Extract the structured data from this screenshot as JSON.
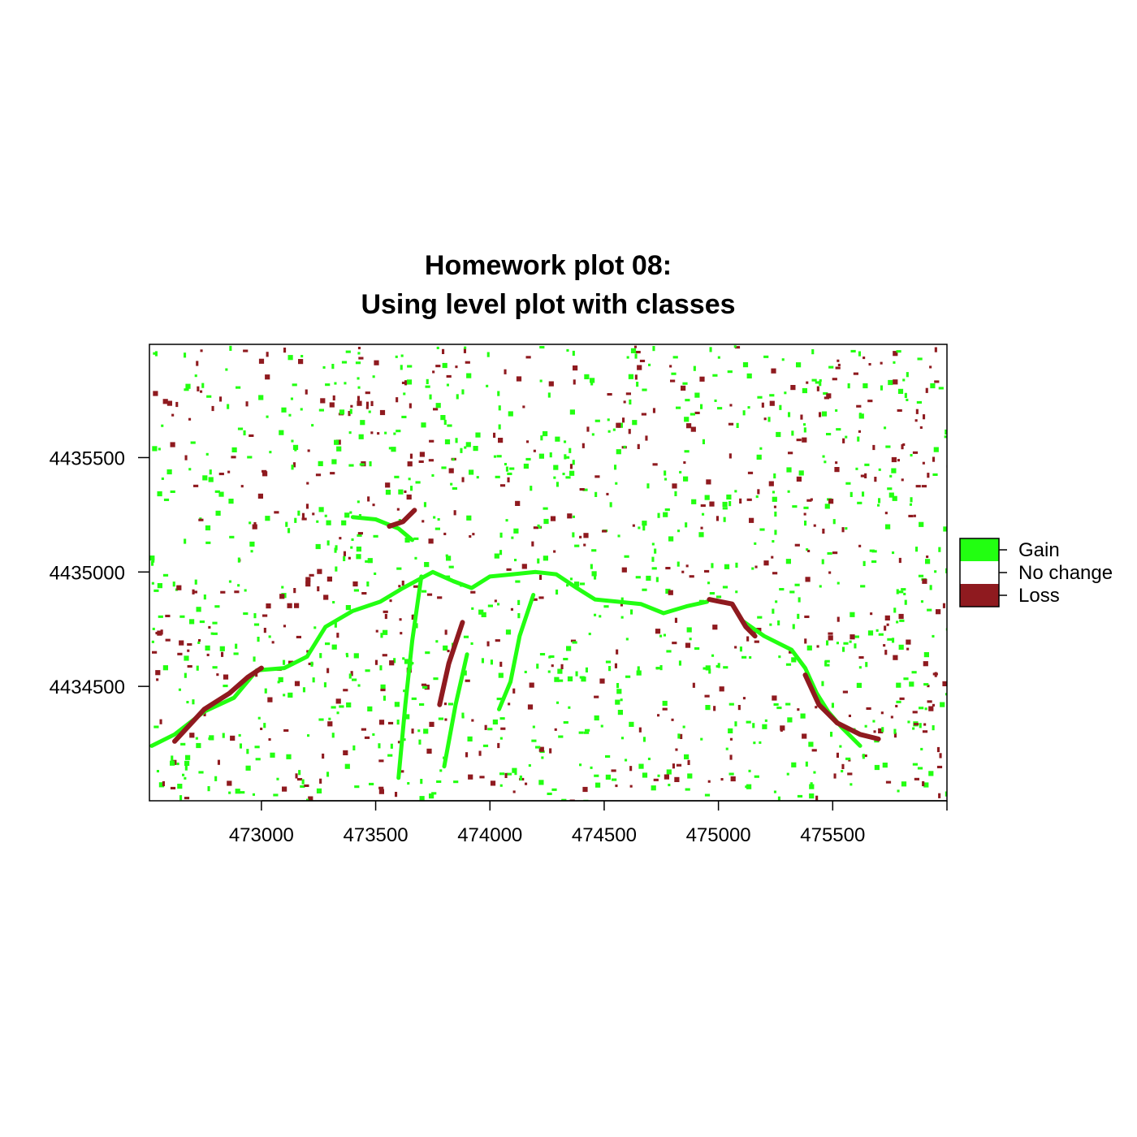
{
  "chart_data": {
    "type": "heatmap",
    "title_lines": [
      "Homework plot 08:",
      "Using level plot with classes"
    ],
    "xlabel": "",
    "ylabel": "",
    "xlim": [
      472510,
      476000
    ],
    "ylim": [
      4434000,
      4435995
    ],
    "x_ticks": [
      473000,
      473500,
      474000,
      474500,
      475000,
      475500
    ],
    "y_ticks": [
      4434500,
      4435000,
      4435500
    ],
    "legend": {
      "placement": "right",
      "classes": [
        {
          "label": "Gain",
          "value": 1,
          "color": "#22ff11"
        },
        {
          "label": "No change",
          "value": 0,
          "color": "#ffffff"
        },
        {
          "label": "Loss",
          "value": -1,
          "color": "#8f1a1f"
        }
      ]
    },
    "features": [
      {
        "class": "Gain",
        "path": [
          [
            472520,
            4434240
          ],
          [
            472620,
            4434290
          ],
          [
            472750,
            4434390
          ],
          [
            472880,
            4434450
          ],
          [
            472980,
            4434570
          ],
          [
            473100,
            4434580
          ],
          [
            473200,
            4434630
          ],
          [
            473280,
            4434760
          ],
          [
            473400,
            4434830
          ],
          [
            473520,
            4434870
          ],
          [
            473620,
            4434930
          ],
          [
            473750,
            4435000
          ],
          [
            473840,
            4434960
          ],
          [
            473920,
            4434930
          ],
          [
            474000,
            4434980
          ],
          [
            474100,
            4434990
          ],
          [
            474200,
            4435000
          ],
          [
            474290,
            4434990
          ],
          [
            474380,
            4434930
          ],
          [
            474460,
            4434880
          ],
          [
            474560,
            4434870
          ],
          [
            474660,
            4434860
          ],
          [
            474760,
            4434820
          ],
          [
            474860,
            4434850
          ],
          [
            474950,
            4434870
          ]
        ]
      },
      {
        "class": "Gain",
        "path": [
          [
            475100,
            4434790
          ],
          [
            475200,
            4434720
          ],
          [
            475320,
            4434660
          ],
          [
            475380,
            4434580
          ],
          [
            475430,
            4434470
          ],
          [
            475480,
            4434390
          ],
          [
            475540,
            4434320
          ],
          [
            475620,
            4434240
          ]
        ]
      },
      {
        "class": "Gain",
        "path": [
          [
            473400,
            4435240
          ],
          [
            473500,
            4435230
          ],
          [
            473600,
            4435190
          ],
          [
            473660,
            4435140
          ]
        ]
      },
      {
        "class": "Gain",
        "path": [
          [
            474190,
            4434900
          ],
          [
            474130,
            4434720
          ],
          [
            474090,
            4434520
          ],
          [
            474040,
            4434400
          ]
        ]
      },
      {
        "class": "Gain",
        "path": [
          [
            473700,
            4434980
          ],
          [
            473660,
            4434700
          ],
          [
            473630,
            4434420
          ],
          [
            473600,
            4434100
          ]
        ]
      },
      {
        "class": "Gain",
        "path": [
          [
            473900,
            4434640
          ],
          [
            473850,
            4434420
          ],
          [
            473800,
            4434150
          ]
        ]
      },
      {
        "class": "Loss",
        "path": [
          [
            472620,
            4434260
          ],
          [
            472750,
            4434400
          ],
          [
            472860,
            4434470
          ],
          [
            472940,
            4434540
          ],
          [
            473000,
            4434580
          ]
        ]
      },
      {
        "class": "Loss",
        "path": [
          [
            474960,
            4434880
          ],
          [
            475060,
            4434860
          ],
          [
            475120,
            4434760
          ],
          [
            475160,
            4434720
          ]
        ]
      },
      {
        "class": "Loss",
        "path": [
          [
            475380,
            4434550
          ],
          [
            475440,
            4434420
          ],
          [
            475520,
            4434340
          ],
          [
            475620,
            4434290
          ],
          [
            475700,
            4434270
          ]
        ]
      },
      {
        "class": "Loss",
        "path": [
          [
            473560,
            4435200
          ],
          [
            473620,
            4435220
          ],
          [
            473670,
            4435270
          ]
        ]
      },
      {
        "class": "Loss",
        "path": [
          [
            473880,
            4434780
          ],
          [
            473820,
            4434600
          ],
          [
            473780,
            4434420
          ]
        ]
      }
    ]
  }
}
